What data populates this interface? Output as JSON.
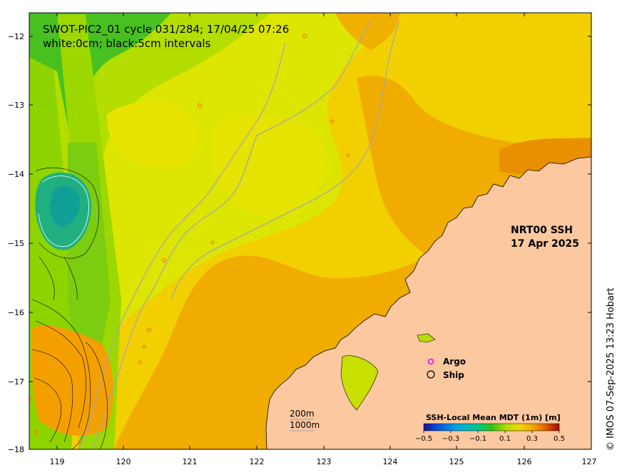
{
  "map": {
    "title_line1": "SWOT-PIC2_01 cycle 031/284; 17/04/25 07:26",
    "title_line2": "white:0cm; black:5cm intervals",
    "product_line1": "NRT00 SSH",
    "product_line2": "17 Apr 2025",
    "credit": "© IMOS 07-Sep-2025 13:23 Hobart",
    "x_ticks": [
      "119",
      "120",
      "121",
      "122",
      "123",
      "124",
      "125",
      "126",
      "127"
    ],
    "y_ticks": [
      "−12",
      "−13",
      "−14",
      "−15",
      "−16",
      "−17",
      "−18"
    ],
    "lon_range": [
      118.6,
      127
    ],
    "lat_range": [
      -18,
      -11.7
    ]
  },
  "legend": {
    "argo_label": "Argo",
    "ship_label": "Ship",
    "argo_color": "#ff00ff",
    "ship_color": "#000000"
  },
  "scale_bar": {
    "label_200": "200m",
    "label_1000": "1000m"
  },
  "colorbar": {
    "title": "SSH-Local Mean MDT (1m) [m]",
    "tick_labels": [
      "−0.5",
      "−0.3",
      "−0.1",
      "0.1",
      "0.3",
      "0.5"
    ],
    "range": [
      -0.5,
      0.5
    ],
    "colors": [
      "#1a0f8c",
      "#0050e0",
      "#00a8e0",
      "#00c890",
      "#10c010",
      "#80d800",
      "#d8e800",
      "#f8c800",
      "#f09000",
      "#e05000",
      "#b01000"
    ]
  },
  "colors": {
    "land": "#fcc8a0",
    "ocean_base": "#f4d200",
    "swot_green": "#78cc00",
    "deep_green": "#10a060"
  }
}
